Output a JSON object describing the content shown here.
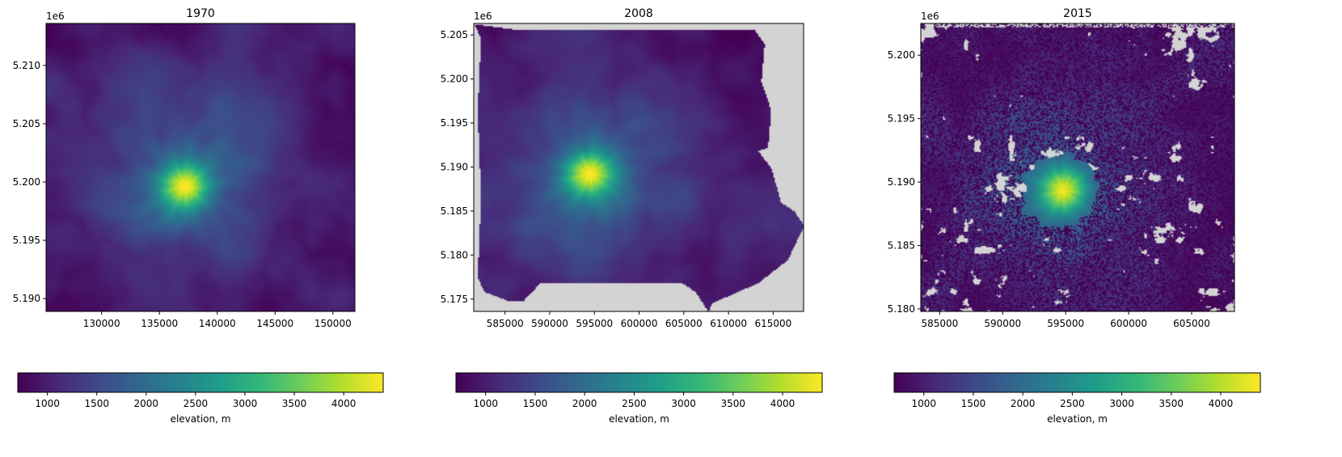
{
  "colormap_stops": [
    "#440154",
    "#482878",
    "#3e4989",
    "#31688e",
    "#26828e",
    "#1f9e89",
    "#35b779",
    "#6ece58",
    "#b5de2b",
    "#fde725"
  ],
  "nodata_color": "#d3d3d3",
  "chart_data": [
    {
      "type": "heatmap",
      "title": "1970",
      "xlim": [
        125200,
        151900
      ],
      "ylim": [
        5188900,
        5213600
      ],
      "xticks": [
        130000,
        135000,
        140000,
        145000,
        150000
      ],
      "xtick_labels": [
        "130000",
        "135000",
        "140000",
        "145000",
        "150000"
      ],
      "yticks": [
        5190000,
        5195000,
        5200000,
        5205000,
        5210000
      ],
      "ytick_labels": [
        "5.190",
        "5.195",
        "5.200",
        "5.205",
        "5.210"
      ],
      "y_offset_label": "1e6",
      "peak": {
        "x": 137200,
        "y": 5199700,
        "elevation": 4390
      },
      "value_range": [
        700,
        4400
      ],
      "footprint": "full",
      "colorbar": {
        "range": [
          700,
          4400
        ],
        "ticks": [
          1000,
          1500,
          2000,
          2500,
          3000,
          3500,
          4000
        ],
        "tick_labels": [
          "1000",
          "1500",
          "2000",
          "2500",
          "3000",
          "3500",
          "4000"
        ],
        "label": "elevation, m"
      }
    },
    {
      "type": "heatmap",
      "title": "2008",
      "xlim": [
        581500,
        618400
      ],
      "ylim": [
        5173600,
        5206300
      ],
      "xticks": [
        585000,
        590000,
        595000,
        600000,
        605000,
        610000,
        615000
      ],
      "xtick_labels": [
        "585000",
        "590000",
        "595000",
        "600000",
        "605000",
        "610000",
        "615000"
      ],
      "yticks": [
        5175000,
        5180000,
        5185000,
        5190000,
        5195000,
        5200000,
        5205000
      ],
      "ytick_labels": [
        "5.175",
        "5.180",
        "5.185",
        "5.190",
        "5.195",
        "5.200",
        "5.205"
      ],
      "y_offset_label": "1e6",
      "peak": {
        "x": 594500,
        "y": 5189300,
        "elevation": 4390
      },
      "value_range": [
        700,
        4400
      ],
      "footprint": "polygon",
      "colorbar": {
        "range": [
          700,
          4400
        ],
        "ticks": [
          1000,
          1500,
          2000,
          2500,
          3000,
          3500,
          4000
        ],
        "tick_labels": [
          "1000",
          "1500",
          "2000",
          "2500",
          "3000",
          "3500",
          "4000"
        ],
        "label": "elevation, m"
      }
    },
    {
      "type": "heatmap",
      "title": "2015",
      "xlim": [
        583500,
        608400
      ],
      "ylim": [
        5179800,
        5202500
      ],
      "xticks": [
        585000,
        590000,
        595000,
        600000,
        605000
      ],
      "xtick_labels": [
        "585000",
        "590000",
        "595000",
        "600000",
        "605000"
      ],
      "yticks": [
        5180000,
        5185000,
        5190000,
        5195000,
        5200000
      ],
      "ytick_labels": [
        "5.180",
        "5.185",
        "5.190",
        "5.195",
        "5.200"
      ],
      "y_offset_label": "1e6",
      "peak": {
        "x": 594800,
        "y": 5189400,
        "elevation": 4390
      },
      "value_range": [
        700,
        4400
      ],
      "footprint": "speckled",
      "colorbar": {
        "range": [
          700,
          4400
        ],
        "ticks": [
          1000,
          1500,
          2000,
          2500,
          3000,
          3500,
          4000
        ],
        "tick_labels": [
          "1000",
          "1500",
          "2000",
          "2500",
          "3000",
          "3500",
          "4000"
        ],
        "label": "elevation, m"
      }
    }
  ]
}
